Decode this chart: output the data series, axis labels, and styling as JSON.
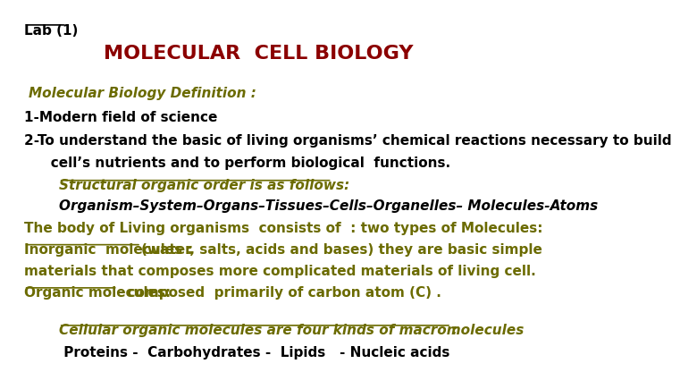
{
  "bg_color": "#ffffff",
  "lab_label": "Lab (1)",
  "title": "MOLECULAR  CELL BIOLOGY",
  "title_color": "#8B0000",
  "def_label": "Molecular Biology Definition :",
  "def_color": "#6B6B00",
  "line1": "1-Modern field of science",
  "line1_color": "#000000",
  "line2": "2-To understand the basic of living organisms’ chemical reactions necessary to build",
  "line2_color": "#000000",
  "line3": "   cell’s nutrients and to perform biological  functions.",
  "line3_color": "#000000",
  "struct_label": "Structural organic order is as follows:",
  "struct_color": "#6B6B00",
  "organism_line": "Organism–System–Organs–Tissues–Cells–Organelles– Molecules-Atoms",
  "organism_color": "#000000",
  "body_line1": "The body of Living organisms  consists of  : two types of Molecules:",
  "body_line2_ul": "Inorganic  molecules : ",
  "body_line2_rest": "(water, salts, acids and bases) they are basic simple",
  "body_line3": "materials that composes more complicated materials of living cell.",
  "body_line4_ul": "Organic molecules:",
  "body_line4_rest": "  composed  primarily of carbon atom (C) .",
  "body_color": "#6B6B00",
  "cellular_label": "Cellular organic molecules are four kinds of macromolecules",
  "cellular_colon": ":",
  "cellular_color": "#6B6B00",
  "proteins_line": " Proteins -  Carbohydrates -  Lipids   - Nucleic acids",
  "proteins_color": "#000000"
}
